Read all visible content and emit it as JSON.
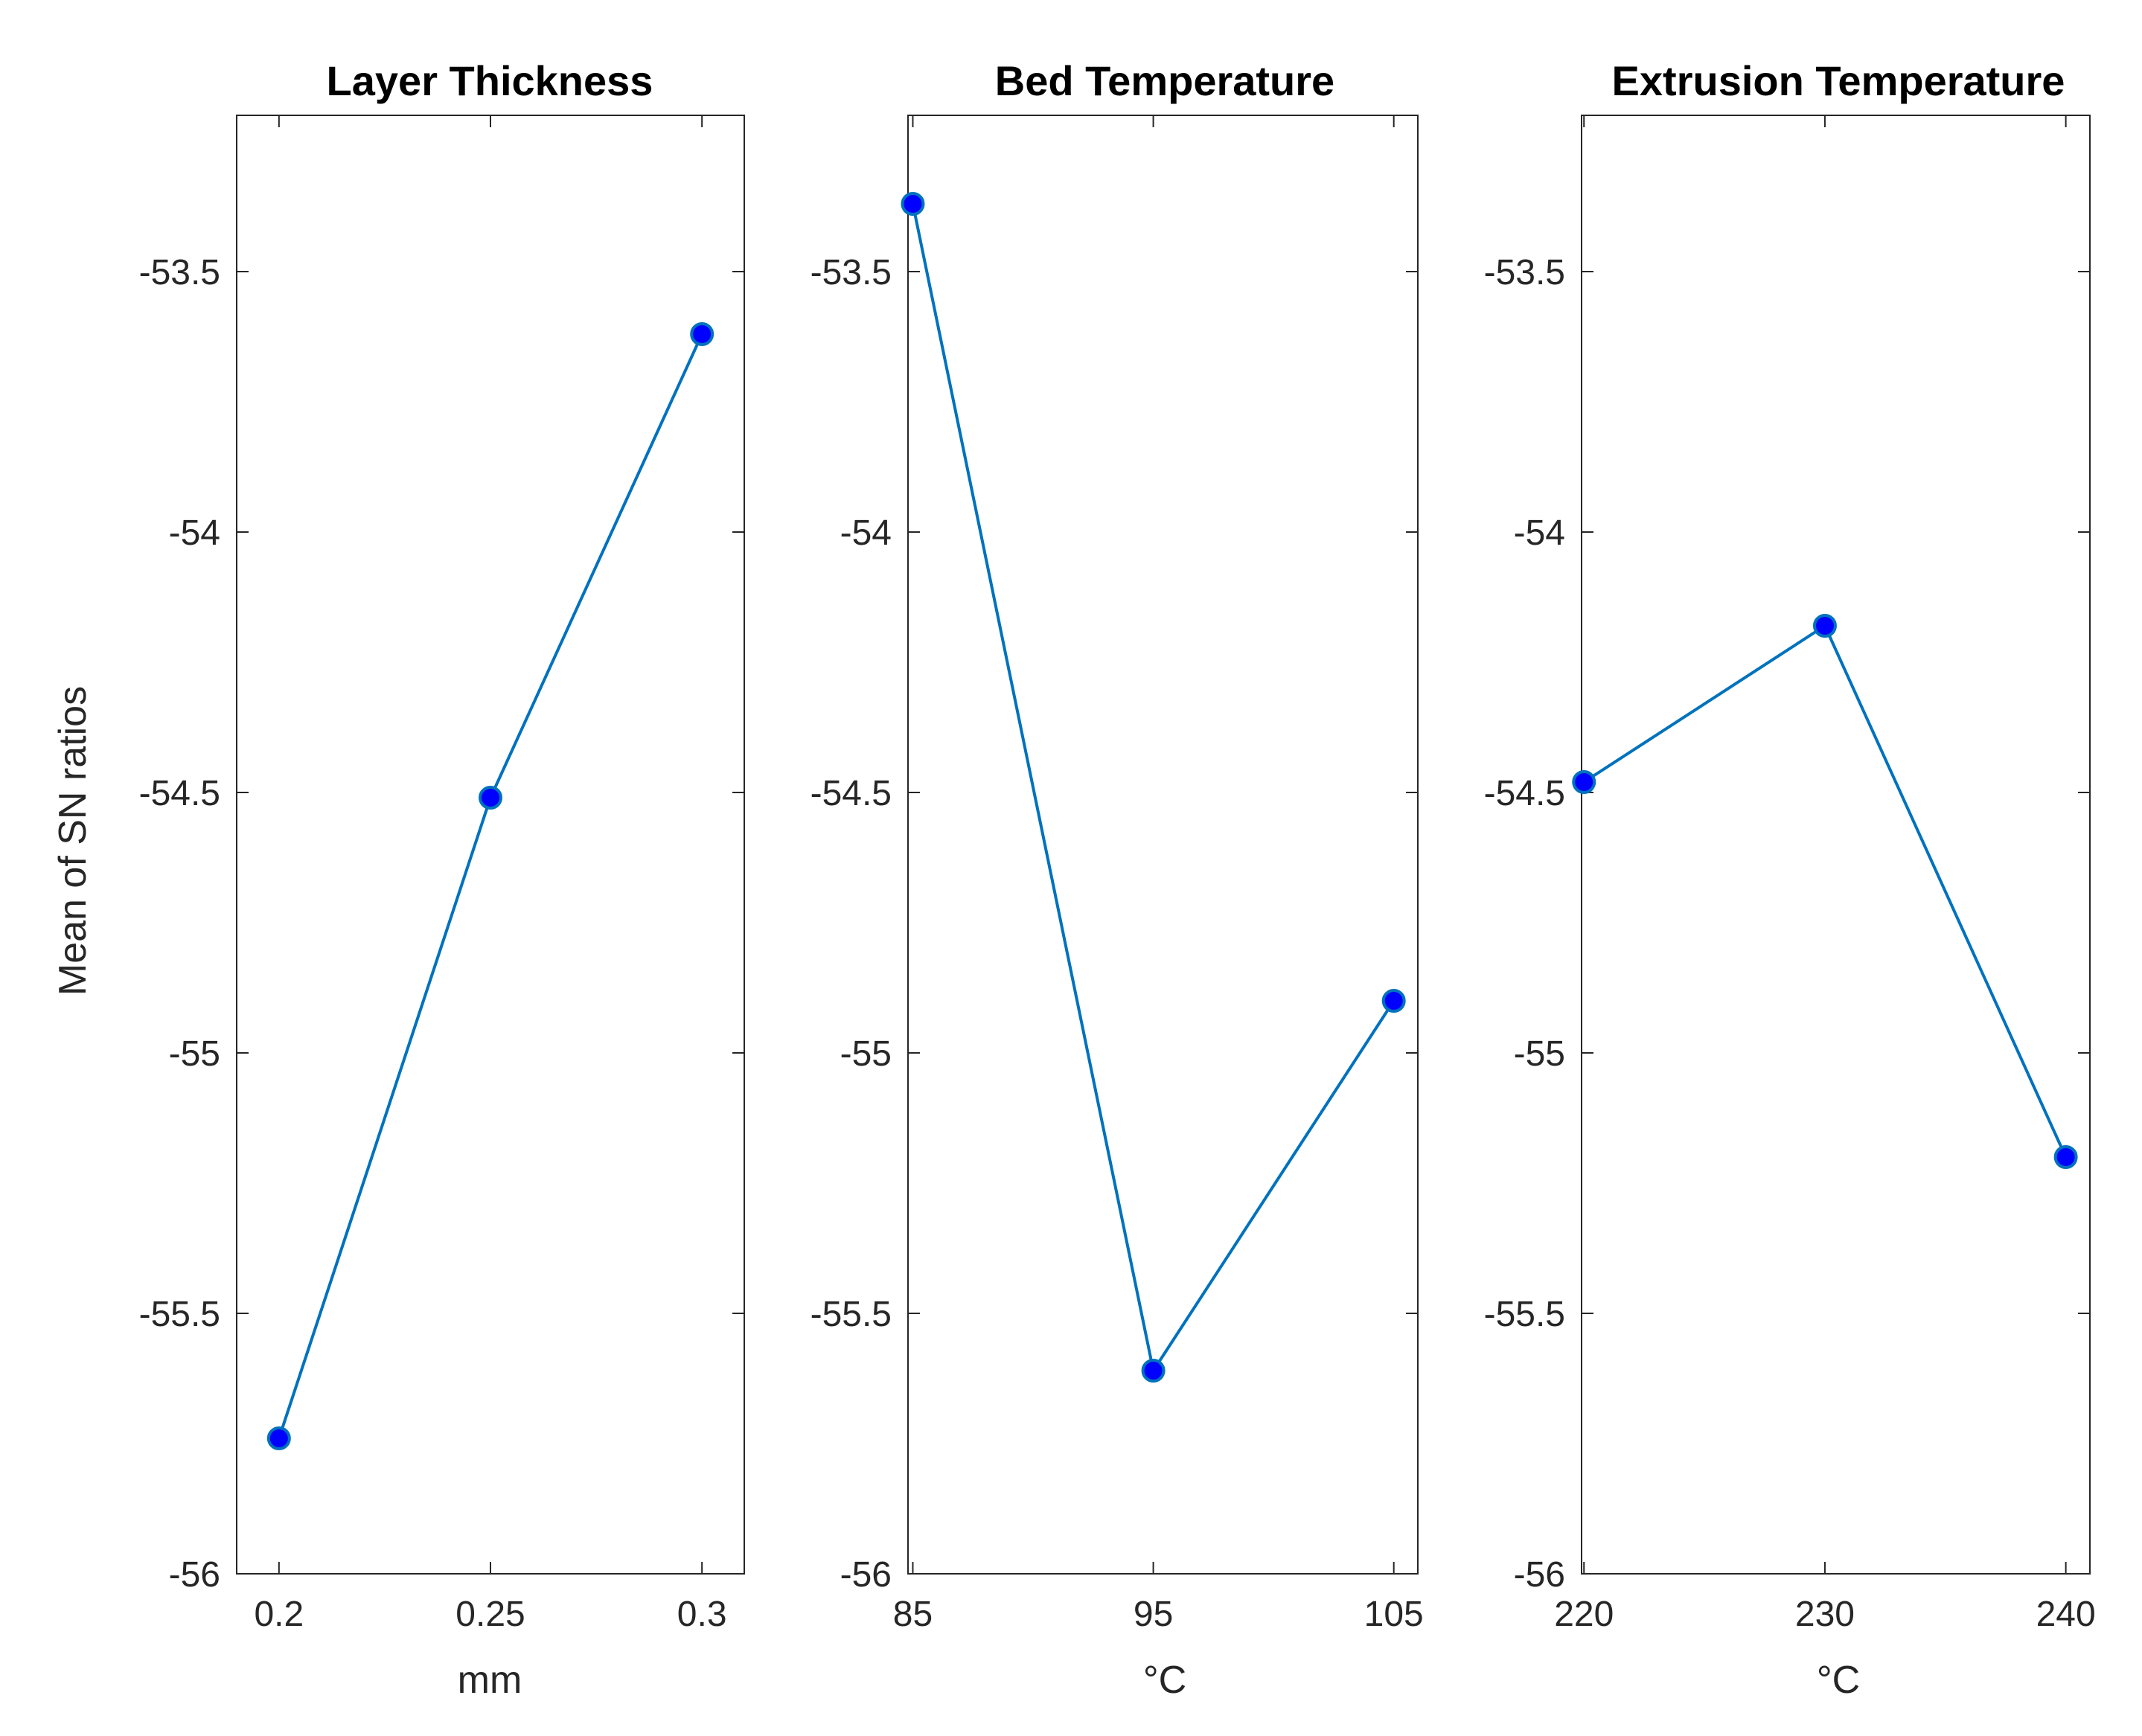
{
  "colors": {
    "line": "#0072BD",
    "marker_fill": "#0000FF",
    "marker_edge": "#0072BD",
    "axes": "#262626"
  },
  "chart_data": {
    "type": "line",
    "ylabel": "Mean of SN ratios",
    "ylim": [
      -56,
      -53.2
    ],
    "yticks": [
      -56,
      -55.5,
      -55,
      -54.5,
      -54,
      -53.5
    ],
    "ytick_labels": [
      "-56",
      "-55.5",
      "-55",
      "-54.5",
      "-54",
      "-53.5"
    ],
    "panels": [
      {
        "title": "Layer Thickness",
        "xlabel": "mm",
        "x": [
          0.2,
          0.25,
          0.3
        ],
        "xtick_labels": [
          "0.2",
          "0.25",
          "0.3"
        ],
        "xlim": [
          0.19,
          0.31
        ],
        "y": [
          -55.74,
          -54.51,
          -53.62
        ]
      },
      {
        "title": "Bed Temperature",
        "xlabel": "°C",
        "x": [
          85,
          95,
          105
        ],
        "xtick_labels": [
          "85",
          "95",
          "105"
        ],
        "xlim": [
          84.8,
          106
        ],
        "y": [
          -53.37,
          -55.61,
          -54.9
        ]
      },
      {
        "title": "Extrusion Temperature",
        "xlabel": "°C",
        "x": [
          220,
          230,
          240
        ],
        "xtick_labels": [
          "220",
          "230",
          "240"
        ],
        "xlim": [
          219.9,
          241
        ],
        "y": [
          -54.48,
          -54.18,
          -55.2
        ]
      }
    ]
  }
}
